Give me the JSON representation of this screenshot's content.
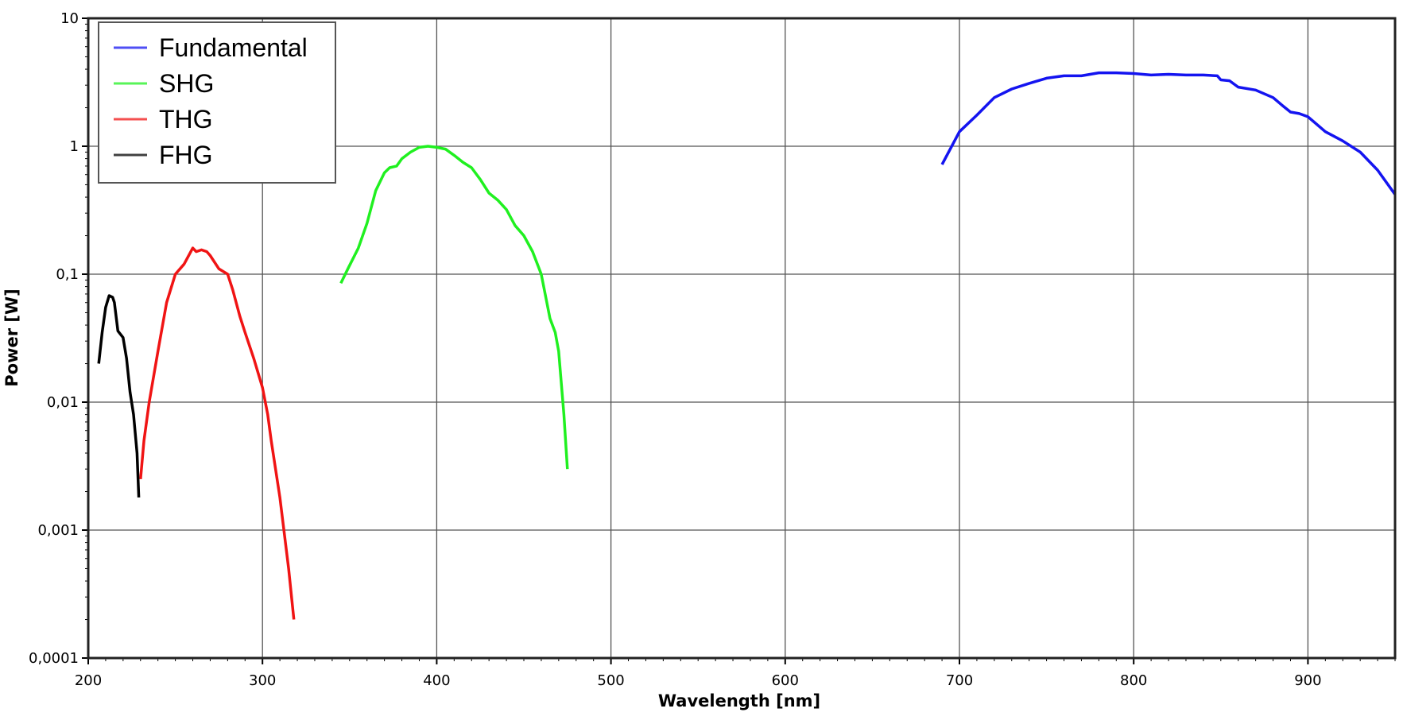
{
  "chart_data": {
    "type": "line",
    "xlabel": "Wavelength [nm]",
    "ylabel": "Power [W]",
    "xlim": [
      200,
      950
    ],
    "ylim": [
      0.0001,
      10
    ],
    "yscale": "log",
    "grid": true,
    "legend_position": "top-left",
    "x_ticks": [
      "200",
      "300",
      "400",
      "500",
      "600",
      "700",
      "800",
      "900"
    ],
    "x_tick_values": [
      200,
      300,
      400,
      500,
      600,
      700,
      800,
      900
    ],
    "y_ticks": [
      "0,0001",
      "0,001",
      "0,01",
      "0,1",
      "1",
      "10"
    ],
    "y_tick_values": [
      0.0001,
      0.001,
      0.01,
      0.1,
      1,
      10
    ],
    "series": [
      {
        "name": "Fundamental",
        "color": "#1414f0",
        "x": [
          690,
          700,
          710,
          720,
          730,
          740,
          750,
          760,
          770,
          780,
          790,
          800,
          810,
          820,
          830,
          840,
          848,
          850,
          855,
          860,
          870,
          880,
          885,
          890,
          895,
          900,
          910,
          920,
          930,
          940,
          950
        ],
        "y": [
          0.72,
          1.3,
          1.75,
          2.4,
          2.8,
          3.1,
          3.4,
          3.55,
          3.55,
          3.75,
          3.75,
          3.7,
          3.6,
          3.65,
          3.6,
          3.6,
          3.55,
          3.3,
          3.25,
          2.9,
          2.75,
          2.4,
          2.1,
          1.85,
          1.8,
          1.7,
          1.3,
          1.1,
          0.9,
          0.65,
          0.42
        ]
      },
      {
        "name": "SHG",
        "color": "#20f020",
        "x": [
          345,
          349,
          355,
          360,
          365,
          370,
          373,
          377,
          380,
          385,
          390,
          395,
          400,
          405,
          410,
          415,
          420,
          425,
          430,
          435,
          440,
          445,
          450,
          455,
          460,
          465,
          468,
          470,
          473,
          475
        ],
        "y": [
          0.085,
          0.11,
          0.16,
          0.25,
          0.45,
          0.62,
          0.68,
          0.7,
          0.8,
          0.9,
          0.98,
          1.0,
          0.98,
          0.95,
          0.85,
          0.75,
          0.68,
          0.55,
          0.43,
          0.38,
          0.32,
          0.24,
          0.2,
          0.15,
          0.1,
          0.045,
          0.035,
          0.025,
          0.008,
          0.003
        ]
      },
      {
        "name": "THG",
        "color": "#f01414",
        "x": [
          230,
          232,
          235,
          240,
          245,
          250,
          255,
          260,
          262,
          265,
          268,
          270,
          275,
          280,
          283,
          287,
          290,
          295,
          300,
          303,
          305,
          310,
          315,
          318
        ],
        "y": [
          0.0025,
          0.005,
          0.01,
          0.025,
          0.06,
          0.1,
          0.12,
          0.16,
          0.15,
          0.155,
          0.15,
          0.14,
          0.11,
          0.1,
          0.075,
          0.047,
          0.035,
          0.022,
          0.013,
          0.008,
          0.005,
          0.0018,
          0.0005,
          0.0002
        ]
      },
      {
        "name": "FHG",
        "color": "#000000",
        "x": [
          206,
          208,
          210,
          212,
          214,
          215,
          217,
          220,
          222,
          224,
          226,
          228,
          229
        ],
        "y": [
          0.02,
          0.035,
          0.055,
          0.068,
          0.066,
          0.06,
          0.036,
          0.032,
          0.022,
          0.012,
          0.008,
          0.004,
          0.0018
        ]
      }
    ]
  }
}
